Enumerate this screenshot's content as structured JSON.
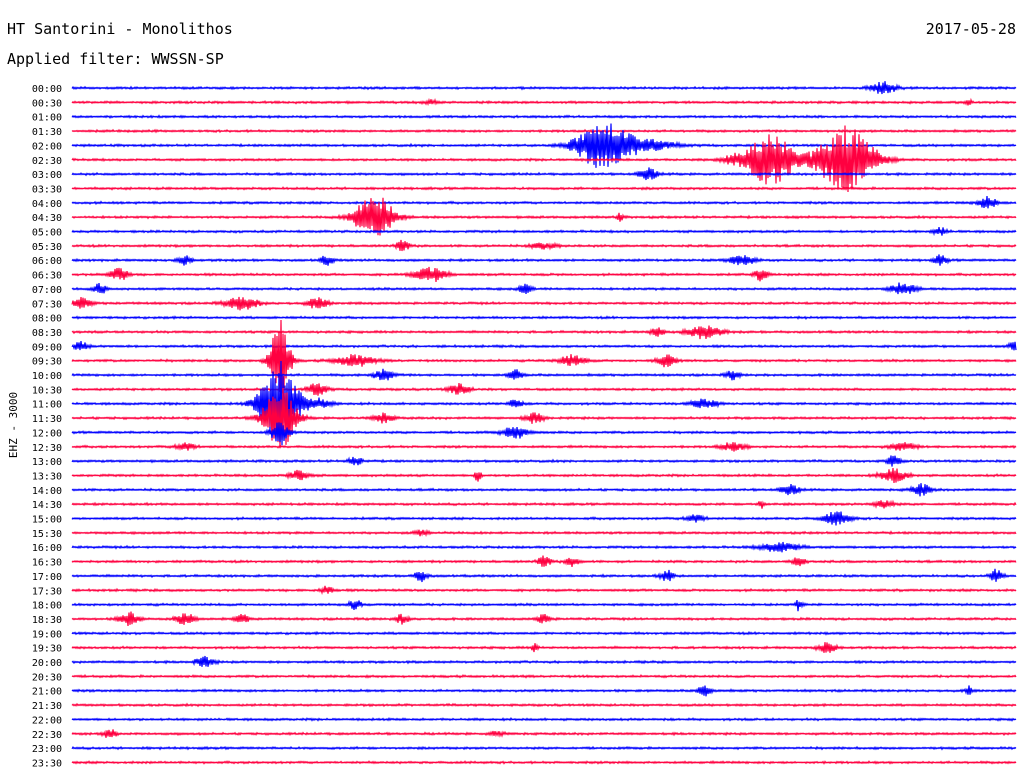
{
  "header": {
    "station": "HT Santorini - Monolithos",
    "date": "2017-05-28",
    "filter": "Applied filter: WWSSN-SP"
  },
  "chart_data": {
    "type": "line",
    "kind": "helicorder",
    "channel_label": "EHZ - 3000",
    "row_labels": [
      "00:00",
      "00:30",
      "01:00",
      "01:30",
      "02:00",
      "02:30",
      "03:00",
      "03:30",
      "04:00",
      "04:30",
      "05:00",
      "05:30",
      "06:00",
      "06:30",
      "07:00",
      "07:30",
      "08:00",
      "08:30",
      "09:00",
      "09:30",
      "10:00",
      "10:30",
      "11:00",
      "11:30",
      "12:00",
      "12:30",
      "13:00",
      "13:30",
      "14:00",
      "14:30",
      "15:00",
      "15:30",
      "16:00",
      "16:30",
      "17:00",
      "17:30",
      "18:00",
      "18:30",
      "19:00",
      "19:30",
      "20:00",
      "20:30",
      "21:00",
      "21:30",
      "22:00",
      "22:30",
      "23:00",
      "23:30"
    ],
    "trace_colors": [
      "#0000ff",
      "#ff0040"
    ],
    "color_pattern": "alternating, starting blue at 00:00",
    "events": [
      {
        "row": "00:00",
        "at": 0.86,
        "amp": 6,
        "dur": 0.02
      },
      {
        "row": "00:30",
        "at": 0.38,
        "amp": 2,
        "dur": 0.01
      },
      {
        "row": "00:30",
        "at": 0.95,
        "amp": 3,
        "dur": 0.005
      },
      {
        "row": "02:00",
        "at": 0.56,
        "amp": 22,
        "dur": 0.04
      },
      {
        "row": "02:00",
        "at": 0.6,
        "amp": 7,
        "dur": 0.05
      },
      {
        "row": "02:30",
        "at": 0.74,
        "amp": 25,
        "dur": 0.04
      },
      {
        "row": "02:30",
        "at": 0.82,
        "amp": 34,
        "dur": 0.045
      },
      {
        "row": "02:30",
        "at": 0.7,
        "amp": 3,
        "dur": 0.02
      },
      {
        "row": "03:00",
        "at": 0.61,
        "amp": 6,
        "dur": 0.015
      },
      {
        "row": "04:00",
        "at": 0.97,
        "amp": 6,
        "dur": 0.015
      },
      {
        "row": "04:30",
        "at": 0.32,
        "amp": 24,
        "dur": 0.03
      },
      {
        "row": "04:30",
        "at": 0.58,
        "amp": 4,
        "dur": 0.005
      },
      {
        "row": "05:00",
        "at": 0.92,
        "amp": 4,
        "dur": 0.01
      },
      {
        "row": "05:30",
        "at": 0.35,
        "amp": 6,
        "dur": 0.01
      },
      {
        "row": "05:30",
        "at": 0.5,
        "amp": 3,
        "dur": 0.02
      },
      {
        "row": "06:00",
        "at": 0.12,
        "amp": 5,
        "dur": 0.01
      },
      {
        "row": "06:00",
        "at": 0.27,
        "amp": 5,
        "dur": 0.01
      },
      {
        "row": "06:00",
        "at": 0.71,
        "amp": 5,
        "dur": 0.02
      },
      {
        "row": "06:00",
        "at": 0.92,
        "amp": 5,
        "dur": 0.01
      },
      {
        "row": "06:30",
        "at": 0.05,
        "amp": 6,
        "dur": 0.015
      },
      {
        "row": "06:30",
        "at": 0.38,
        "amp": 7,
        "dur": 0.025
      },
      {
        "row": "06:30",
        "at": 0.73,
        "amp": 6,
        "dur": 0.01
      },
      {
        "row": "07:00",
        "at": 0.03,
        "amp": 6,
        "dur": 0.01
      },
      {
        "row": "07:00",
        "at": 0.48,
        "amp": 5,
        "dur": 0.01
      },
      {
        "row": "07:00",
        "at": 0.88,
        "amp": 6,
        "dur": 0.02
      },
      {
        "row": "07:30",
        "at": 0.01,
        "amp": 5,
        "dur": 0.015
      },
      {
        "row": "07:30",
        "at": 0.18,
        "amp": 7,
        "dur": 0.025
      },
      {
        "row": "07:30",
        "at": 0.26,
        "amp": 6,
        "dur": 0.015
      },
      {
        "row": "08:30",
        "at": 0.62,
        "amp": 5,
        "dur": 0.01
      },
      {
        "row": "08:30",
        "at": 0.67,
        "amp": 7,
        "dur": 0.025
      },
      {
        "row": "09:00",
        "at": 0.01,
        "amp": 5,
        "dur": 0.01
      },
      {
        "row": "09:00",
        "at": 1.0,
        "amp": 6,
        "dur": 0.01
      },
      {
        "row": "09:30",
        "at": 0.22,
        "amp": 45,
        "dur": 0.015
      },
      {
        "row": "09:30",
        "at": 0.3,
        "amp": 6,
        "dur": 0.03
      },
      {
        "row": "09:30",
        "at": 0.53,
        "amp": 6,
        "dur": 0.02
      },
      {
        "row": "09:30",
        "at": 0.63,
        "amp": 6,
        "dur": 0.015
      },
      {
        "row": "10:00",
        "at": 0.33,
        "amp": 6,
        "dur": 0.015
      },
      {
        "row": "10:00",
        "at": 0.47,
        "amp": 6,
        "dur": 0.01
      },
      {
        "row": "10:00",
        "at": 0.7,
        "amp": 5,
        "dur": 0.01
      },
      {
        "row": "10:30",
        "at": 0.26,
        "amp": 6,
        "dur": 0.015
      },
      {
        "row": "10:30",
        "at": 0.41,
        "amp": 6,
        "dur": 0.015
      },
      {
        "row": "11:00",
        "at": 0.22,
        "amp": 44,
        "dur": 0.03
      },
      {
        "row": "11:00",
        "at": 0.26,
        "amp": 5,
        "dur": 0.02
      },
      {
        "row": "11:00",
        "at": 0.47,
        "amp": 5,
        "dur": 0.01
      },
      {
        "row": "11:00",
        "at": 0.67,
        "amp": 5,
        "dur": 0.02
      },
      {
        "row": "11:30",
        "at": 0.22,
        "amp": 32,
        "dur": 0.025
      },
      {
        "row": "11:30",
        "at": 0.33,
        "amp": 5,
        "dur": 0.015
      },
      {
        "row": "11:30",
        "at": 0.49,
        "amp": 5,
        "dur": 0.015
      },
      {
        "row": "12:00",
        "at": 0.22,
        "amp": 10,
        "dur": 0.015
      },
      {
        "row": "12:00",
        "at": 0.47,
        "amp": 6,
        "dur": 0.02
      },
      {
        "row": "12:30",
        "at": 0.12,
        "amp": 4,
        "dur": 0.015
      },
      {
        "row": "12:30",
        "at": 0.7,
        "amp": 4,
        "dur": 0.02
      },
      {
        "row": "12:30",
        "at": 0.88,
        "amp": 4,
        "dur": 0.02
      },
      {
        "row": "13:00",
        "at": 0.3,
        "amp": 5,
        "dur": 0.01
      },
      {
        "row": "13:00",
        "at": 0.87,
        "amp": 6,
        "dur": 0.01
      },
      {
        "row": "13:30",
        "at": 0.24,
        "amp": 5,
        "dur": 0.015
      },
      {
        "row": "13:30",
        "at": 0.43,
        "amp": 6,
        "dur": 0.005
      },
      {
        "row": "13:30",
        "at": 0.87,
        "amp": 7,
        "dur": 0.02
      },
      {
        "row": "14:00",
        "at": 0.76,
        "amp": 5,
        "dur": 0.015
      },
      {
        "row": "14:00",
        "at": 0.9,
        "amp": 6,
        "dur": 0.015
      },
      {
        "row": "14:30",
        "at": 0.73,
        "amp": 4,
        "dur": 0.005
      },
      {
        "row": "14:30",
        "at": 0.86,
        "amp": 4,
        "dur": 0.015
      },
      {
        "row": "15:00",
        "at": 0.66,
        "amp": 4,
        "dur": 0.015
      },
      {
        "row": "15:00",
        "at": 0.81,
        "amp": 7,
        "dur": 0.02
      },
      {
        "row": "15:30",
        "at": 0.37,
        "amp": 3,
        "dur": 0.01
      },
      {
        "row": "16:00",
        "at": 0.75,
        "amp": 5,
        "dur": 0.03
      },
      {
        "row": "16:30",
        "at": 0.5,
        "amp": 6,
        "dur": 0.01
      },
      {
        "row": "16:30",
        "at": 0.53,
        "amp": 5,
        "dur": 0.01
      },
      {
        "row": "16:30",
        "at": 0.77,
        "amp": 5,
        "dur": 0.01
      },
      {
        "row": "17:00",
        "at": 0.37,
        "amp": 6,
        "dur": 0.01
      },
      {
        "row": "17:00",
        "at": 0.63,
        "amp": 6,
        "dur": 0.01
      },
      {
        "row": "17:00",
        "at": 0.98,
        "amp": 7,
        "dur": 0.01
      },
      {
        "row": "17:30",
        "at": 0.27,
        "amp": 4,
        "dur": 0.01
      },
      {
        "row": "18:00",
        "at": 0.3,
        "amp": 5,
        "dur": 0.01
      },
      {
        "row": "18:00",
        "at": 0.77,
        "amp": 6,
        "dur": 0.005
      },
      {
        "row": "18:30",
        "at": 0.06,
        "amp": 7,
        "dur": 0.015
      },
      {
        "row": "18:30",
        "at": 0.12,
        "amp": 6,
        "dur": 0.015
      },
      {
        "row": "18:30",
        "at": 0.18,
        "amp": 5,
        "dur": 0.01
      },
      {
        "row": "18:30",
        "at": 0.35,
        "amp": 5,
        "dur": 0.01
      },
      {
        "row": "18:30",
        "at": 0.5,
        "amp": 5,
        "dur": 0.01
      },
      {
        "row": "19:30",
        "at": 0.49,
        "amp": 4,
        "dur": 0.005
      },
      {
        "row": "19:30",
        "at": 0.8,
        "amp": 5,
        "dur": 0.015
      },
      {
        "row": "20:00",
        "at": 0.14,
        "amp": 5,
        "dur": 0.015
      },
      {
        "row": "21:00",
        "at": 0.67,
        "amp": 6,
        "dur": 0.01
      },
      {
        "row": "21:00",
        "at": 0.95,
        "amp": 5,
        "dur": 0.005
      },
      {
        "row": "22:30",
        "at": 0.04,
        "amp": 5,
        "dur": 0.01
      },
      {
        "row": "22:30",
        "at": 0.45,
        "amp": 3,
        "dur": 0.01
      }
    ]
  }
}
